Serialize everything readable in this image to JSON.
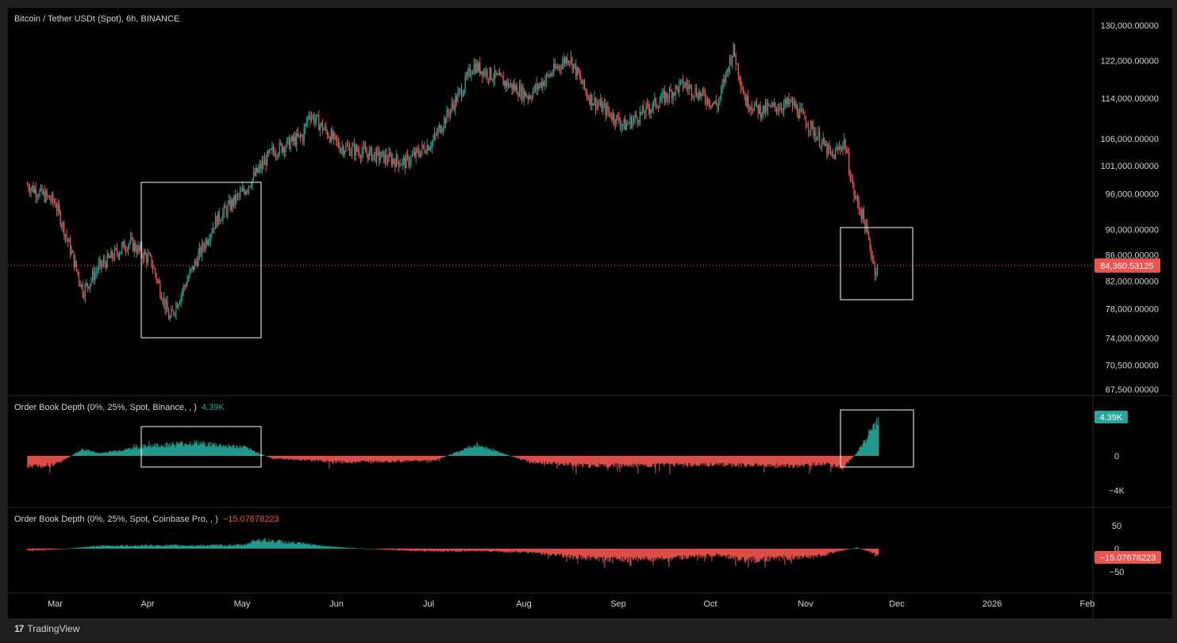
{
  "symbol_title": "Bitcoin / Tether USDt (Spot), 6h, BINANCE",
  "brand": "TradingView",
  "colors": {
    "up": "#26a69a",
    "down": "#ef5350",
    "axis_text": "#d1d4dc",
    "background": "#000000",
    "border": "#2a2a2a",
    "box": "#ffffff"
  },
  "price_axis": {
    "labels": [
      "130,000.00000",
      "122,000.00000",
      "114,000.00000",
      "106,000.00000",
      "101,000.00000",
      "96,000.00000",
      "90,000.00000",
      "86,000.00000",
      "82,000.00000",
      "78,000.00000",
      "74,000.00000",
      "70,500.00000",
      "67,500.00000"
    ],
    "last_price": "84,360.53125"
  },
  "time_axis": {
    "labels": [
      "Mar",
      "Apr",
      "May",
      "Jun",
      "Jul",
      "Aug",
      "Sep",
      "Oct",
      "Nov",
      "Dec",
      "2026",
      "Feb"
    ]
  },
  "indicator1": {
    "label": "Order Book Depth (0%, 25%, Spot, Binance, , )",
    "value": "4.39K",
    "axis": [
      "4.39K",
      "0",
      "−4K"
    ]
  },
  "indicator2": {
    "label": "Order Book Depth (0%, 25%, Spot, Coinbase Pro, , )",
    "value": "−15.07678223",
    "axis": [
      "50",
      "0",
      "−15.07678223",
      "−50"
    ]
  },
  "chart_data": [
    {
      "type": "candlestick",
      "title": "Bitcoin / Tether USDt (Spot), 6h, BINANCE",
      "scale": "log",
      "ylim": [
        67500,
        130000
      ],
      "last_price": 84360.53125,
      "x": [
        "Feb-20",
        "Mar-01",
        "Mar-10",
        "Mar-15",
        "Mar-25",
        "Apr-01",
        "Apr-07",
        "Apr-15",
        "Apr-22",
        "May-01",
        "May-10",
        "May-20",
        "May-22",
        "Jun-01",
        "Jun-05",
        "Jun-22",
        "Jul-01",
        "Jul-11",
        "Jul-14",
        "Aug-01",
        "Aug-14",
        "Aug-20",
        "Sep-01",
        "Sep-10",
        "Sep-20",
        "Oct-01",
        "Oct-06",
        "Oct-10",
        "Oct-15",
        "Oct-25",
        "Nov-01",
        "Nov-07",
        "Nov-11",
        "Nov-14",
        "Nov-17",
        "Nov-21",
        "Nov-22"
      ],
      "close": [
        97500,
        94500,
        80500,
        84000,
        88000,
        85000,
        76500,
        84500,
        91500,
        96500,
        103500,
        106500,
        111000,
        104500,
        104000,
        101500,
        105500,
        116500,
        121000,
        114500,
        123000,
        114500,
        108500,
        112500,
        117000,
        112500,
        124500,
        113500,
        111500,
        113000,
        107500,
        102500,
        105500,
        96000,
        92000,
        83500,
        84360.53
      ]
    },
    {
      "type": "area",
      "title": "Order Book Depth (0%, 25%, Spot, Binance, , )",
      "ylim": [
        -4000,
        4390
      ],
      "last_value": 4390,
      "x": [
        "Feb-20",
        "Mar-01",
        "Mar-10",
        "Mar-15",
        "Apr-01",
        "Apr-15",
        "May-01",
        "May-10",
        "Jun-01",
        "Jul-01",
        "Jul-15",
        "Aug-01",
        "Aug-20",
        "Sep-15",
        "Oct-01",
        "Oct-25",
        "Nov-05",
        "Nov-10",
        "Nov-15",
        "Nov-22"
      ],
      "values": [
        -1300,
        -1000,
        800,
        300,
        1200,
        1500,
        1000,
        -300,
        -700,
        -600,
        1300,
        -700,
        -1100,
        -1100,
        -1000,
        -1200,
        -900,
        -1500,
        400,
        4390
      ]
    },
    {
      "type": "area",
      "title": "Order Book Depth (0%, 25%, Spot, Coinbase Pro, , )",
      "ylim": [
        -50,
        50
      ],
      "last_value": -15.07678223,
      "x": [
        "Feb-20",
        "Mar-01",
        "Mar-15",
        "Apr-01",
        "Apr-15",
        "May-01",
        "May-05",
        "Jun-01",
        "Jun-15",
        "Jul-01",
        "Jul-15",
        "Aug-01",
        "Aug-15",
        "Sep-01",
        "Sep-15",
        "Oct-01",
        "Oct-10",
        "Nov-01",
        "Nov-15",
        "Nov-22"
      ],
      "values": [
        -4,
        -2,
        6,
        7,
        7,
        8,
        20,
        3,
        -2,
        -6,
        -5,
        -8,
        -18,
        -24,
        -22,
        -13,
        -25,
        -18,
        3,
        -15.07678223
      ]
    }
  ]
}
